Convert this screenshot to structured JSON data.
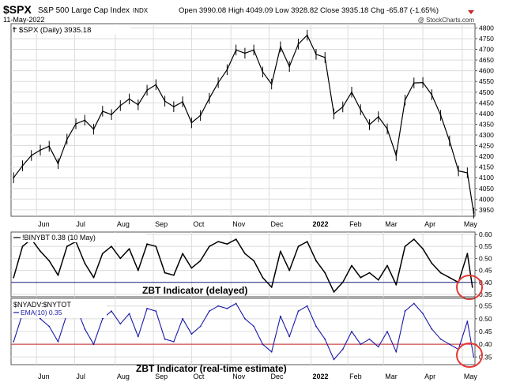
{
  "header": {
    "ticker": "$SPX",
    "name": "S&P 500 Large Cap Index",
    "exchange": "INDX",
    "date": "11-May-2022",
    "quote": "Open 3990.08  High 4049.09  Low 3928.82  Close 3935.18  Chg -65.87 (-1.65%)",
    "watermark": "@ StockCharts.com"
  },
  "chart_data": [
    {
      "type": "line",
      "title": "$SPX (Daily) 3935.18",
      "ylim": [
        3920,
        4820
      ],
      "yticks": [
        3950,
        4000,
        4050,
        4100,
        4150,
        4200,
        4250,
        4300,
        4350,
        4400,
        4450,
        4500,
        4550,
        4600,
        4650,
        4700,
        4750,
        4800
      ],
      "x": [
        "2021-05-14",
        "2021-05-21",
        "2021-05-28",
        "2021-06-04",
        "2021-06-11",
        "2021-06-18",
        "2021-06-25",
        "2021-07-02",
        "2021-07-09",
        "2021-07-16",
        "2021-07-23",
        "2021-07-30",
        "2021-08-06",
        "2021-08-13",
        "2021-08-20",
        "2021-08-27",
        "2021-09-03",
        "2021-09-10",
        "2021-09-17",
        "2021-09-24",
        "2021-10-01",
        "2021-10-08",
        "2021-10-15",
        "2021-10-22",
        "2021-10-29",
        "2021-11-05",
        "2021-11-12",
        "2021-11-19",
        "2021-11-26",
        "2021-12-03",
        "2021-12-10",
        "2021-12-17",
        "2021-12-24",
        "2021-12-31",
        "2022-01-07",
        "2022-01-14",
        "2022-01-21",
        "2022-01-28",
        "2022-02-04",
        "2022-02-11",
        "2022-02-18",
        "2022-02-25",
        "2022-03-04",
        "2022-03-11",
        "2022-03-18",
        "2022-03-25",
        "2022-04-01",
        "2022-04-08",
        "2022-04-15",
        "2022-04-22",
        "2022-04-29",
        "2022-05-06",
        "2022-05-11"
      ],
      "values": [
        4100,
        4156,
        4204,
        4229,
        4247,
        4166,
        4280,
        4352,
        4369,
        4327,
        4411,
        4395,
        4437,
        4468,
        4441,
        4509,
        4535,
        4458,
        4432,
        4455,
        4357,
        4391,
        4471,
        4544,
        4605,
        4697,
        4682,
        4697,
        4594,
        4538,
        4712,
        4620,
        4725,
        4766,
        4677,
        4662,
        4398,
        4431,
        4500,
        4418,
        4348,
        4385,
        4328,
        4204,
        4463,
        4543,
        4545,
        4488,
        4392,
        4272,
        4132,
        4123,
        3935
      ],
      "xticks": [
        {
          "date": "2021-06-01",
          "label": "Jun",
          "bold": false
        },
        {
          "date": "2021-07-01",
          "label": "Jul",
          "bold": false
        },
        {
          "date": "2021-08-02",
          "label": "Aug",
          "bold": false
        },
        {
          "date": "2021-09-01",
          "label": "Sep",
          "bold": false
        },
        {
          "date": "2021-10-01",
          "label": "Oct",
          "bold": false
        },
        {
          "date": "2021-11-01",
          "label": "Nov",
          "bold": false
        },
        {
          "date": "2021-12-01",
          "label": "Dec",
          "bold": false
        },
        {
          "date": "2022-01-03",
          "label": "2022",
          "bold": true
        },
        {
          "date": "2022-02-01",
          "label": "Feb",
          "bold": false
        },
        {
          "date": "2022-03-01",
          "label": "Mar",
          "bold": false
        },
        {
          "date": "2022-04-01",
          "label": "Apr",
          "bold": false
        },
        {
          "date": "2022-05-02",
          "label": "May",
          "bold": false
        }
      ]
    },
    {
      "type": "line",
      "legend": "!BINYBT 0.38 (10 May)",
      "annotation": "ZBT Indicator (delayed)",
      "ylim": [
        0.34,
        0.61
      ],
      "yticks": [
        0.35,
        0.4,
        0.45,
        0.5,
        0.55,
        0.6
      ],
      "reference_line": 0.4,
      "reference_color": "#1a237e",
      "line_color": "#000000",
      "x": [
        "2021-05-14",
        "2021-05-21",
        "2021-05-28",
        "2021-06-04",
        "2021-06-11",
        "2021-06-18",
        "2021-06-25",
        "2021-07-02",
        "2021-07-09",
        "2021-07-16",
        "2021-07-23",
        "2021-07-30",
        "2021-08-06",
        "2021-08-13",
        "2021-08-20",
        "2021-08-27",
        "2021-09-03",
        "2021-09-10",
        "2021-09-17",
        "2021-09-24",
        "2021-10-01",
        "2021-10-08",
        "2021-10-15",
        "2021-10-22",
        "2021-10-29",
        "2021-11-05",
        "2021-11-12",
        "2021-11-19",
        "2021-11-26",
        "2021-12-03",
        "2021-12-10",
        "2021-12-17",
        "2021-12-24",
        "2021-12-31",
        "2022-01-07",
        "2022-01-14",
        "2022-01-21",
        "2022-01-28",
        "2022-02-04",
        "2022-02-11",
        "2022-02-18",
        "2022-02-25",
        "2022-03-04",
        "2022-03-11",
        "2022-03-18",
        "2022-03-25",
        "2022-04-01",
        "2022-04-08",
        "2022-04-15",
        "2022-04-22",
        "2022-04-29",
        "2022-05-06",
        "2022-05-10"
      ],
      "values": [
        0.42,
        0.55,
        0.58,
        0.53,
        0.49,
        0.43,
        0.55,
        0.57,
        0.48,
        0.42,
        0.52,
        0.55,
        0.5,
        0.54,
        0.45,
        0.56,
        0.55,
        0.44,
        0.43,
        0.52,
        0.46,
        0.49,
        0.55,
        0.57,
        0.56,
        0.58,
        0.52,
        0.49,
        0.42,
        0.38,
        0.53,
        0.45,
        0.55,
        0.57,
        0.49,
        0.44,
        0.36,
        0.4,
        0.47,
        0.42,
        0.44,
        0.41,
        0.47,
        0.39,
        0.55,
        0.58,
        0.54,
        0.48,
        0.44,
        0.42,
        0.4,
        0.52,
        0.38
      ],
      "xticks_shared": true
    },
    {
      "type": "line",
      "legend_title": "$NYADV:$NYTOT",
      "legend": "EMA(10) 0.35",
      "annotation": "ZBT Indicator (real-time estimate)",
      "ylim": [
        0.32,
        0.58
      ],
      "yticks": [
        0.35,
        0.4,
        0.45,
        0.5,
        0.55
      ],
      "reference_line": 0.4,
      "reference_color": "#c62828",
      "line_color": "#1a1aa8",
      "x": [
        "2021-05-14",
        "2021-05-21",
        "2021-05-28",
        "2021-06-04",
        "2021-06-11",
        "2021-06-18",
        "2021-06-25",
        "2021-07-02",
        "2021-07-09",
        "2021-07-16",
        "2021-07-23",
        "2021-07-30",
        "2021-08-06",
        "2021-08-13",
        "2021-08-20",
        "2021-08-27",
        "2021-09-03",
        "2021-09-10",
        "2021-09-17",
        "2021-09-24",
        "2021-10-01",
        "2021-10-08",
        "2021-10-15",
        "2021-10-22",
        "2021-10-29",
        "2021-11-05",
        "2021-11-12",
        "2021-11-19",
        "2021-11-26",
        "2021-12-03",
        "2021-12-10",
        "2021-12-17",
        "2021-12-24",
        "2021-12-31",
        "2022-01-07",
        "2022-01-14",
        "2022-01-21",
        "2022-01-28",
        "2022-02-04",
        "2022-02-11",
        "2022-02-18",
        "2022-02-25",
        "2022-03-04",
        "2022-03-11",
        "2022-03-18",
        "2022-03-25",
        "2022-04-01",
        "2022-04-08",
        "2022-04-15",
        "2022-04-22",
        "2022-04-29",
        "2022-05-06",
        "2022-05-11"
      ],
      "values": [
        0.41,
        0.52,
        0.55,
        0.5,
        0.47,
        0.41,
        0.52,
        0.55,
        0.46,
        0.4,
        0.5,
        0.53,
        0.48,
        0.52,
        0.43,
        0.54,
        0.53,
        0.42,
        0.41,
        0.5,
        0.44,
        0.47,
        0.53,
        0.55,
        0.54,
        0.56,
        0.5,
        0.47,
        0.4,
        0.37,
        0.51,
        0.43,
        0.53,
        0.55,
        0.47,
        0.42,
        0.34,
        0.38,
        0.45,
        0.4,
        0.42,
        0.39,
        0.45,
        0.37,
        0.53,
        0.56,
        0.52,
        0.46,
        0.42,
        0.4,
        0.38,
        0.49,
        0.35
      ],
      "xticks_labels_bottom": [
        "Jun",
        "Jul",
        "Aug",
        "Sep",
        "Oct",
        "Nov",
        "Dec",
        "2022",
        "Feb",
        "Mar",
        "Apr",
        "May"
      ]
    }
  ]
}
